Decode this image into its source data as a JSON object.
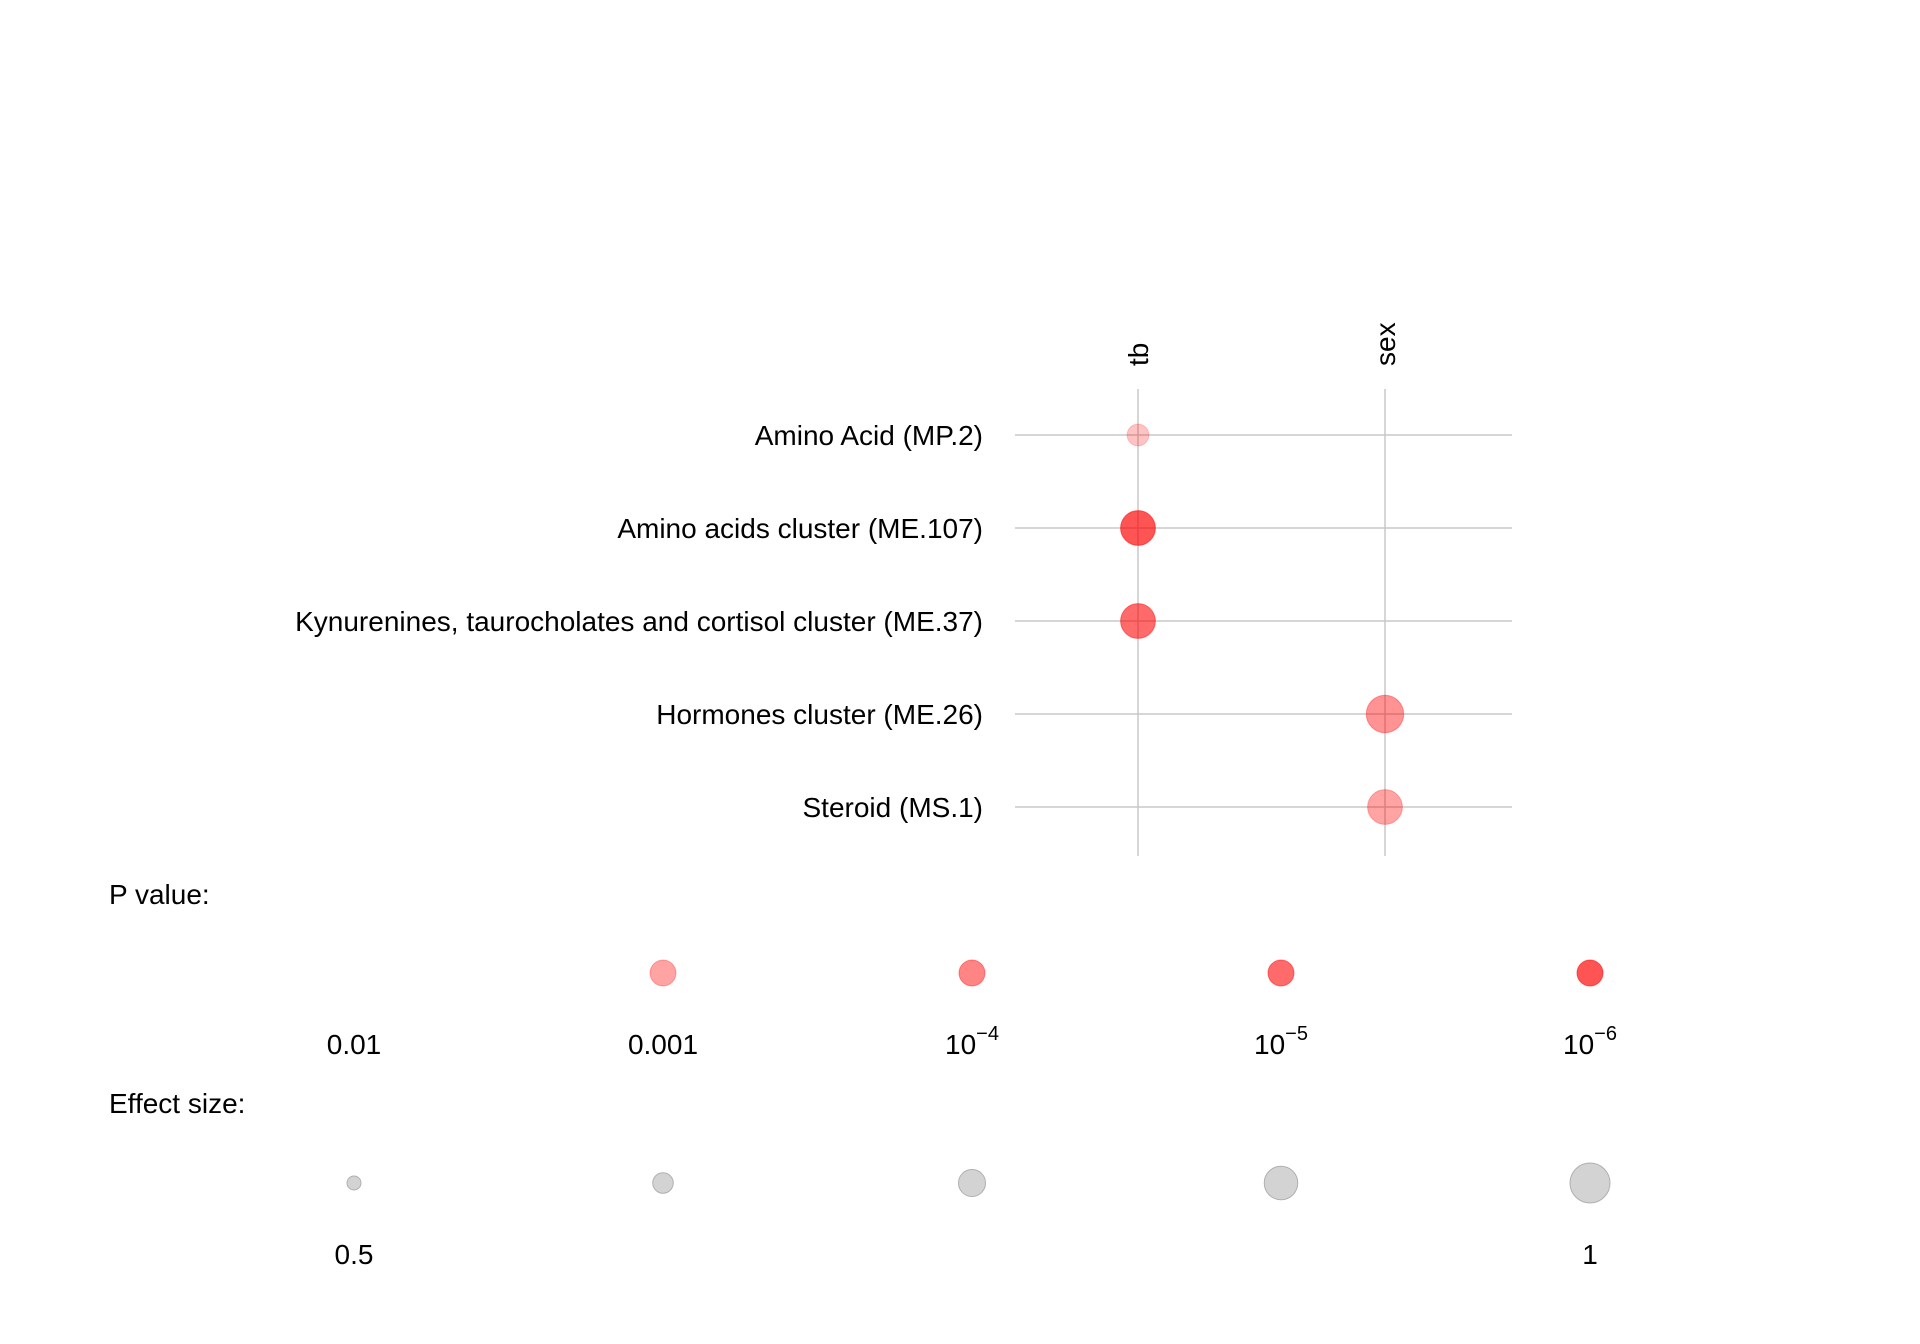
{
  "chart_data": {
    "type": "scatter",
    "columns": [
      "tb",
      "sex"
    ],
    "rows": [
      "Amino Acid (MP.2)",
      "Amino acids cluster (ME.107)",
      "Kynurenines, taurocholates and cortisol cluster (ME.37)",
      "Hormones cluster (ME.26)",
      "Steroid (MS.1)"
    ],
    "points": [
      {
        "row": "Amino Acid (MP.2)",
        "column": "tb",
        "p_value": 0.005,
        "effect_size": 0.65
      },
      {
        "row": "Amino acids cluster (ME.107)",
        "column": "tb",
        "p_value": 1e-06,
        "effect_size": 0.9
      },
      {
        "row": "Kynurenines, taurocholates and cortisol cluster (ME.37)",
        "column": "tb",
        "p_value": 1e-05,
        "effect_size": 0.9
      },
      {
        "row": "Hormones cluster (ME.26)",
        "column": "sex",
        "p_value": 0.0003,
        "effect_size": 0.95
      },
      {
        "row": "Steroid (MS.1)",
        "column": "sex",
        "p_value": 0.001,
        "effect_size": 0.9
      }
    ],
    "grid": true,
    "color": "#ff0000",
    "legend_color": {
      "title": "P value:",
      "entries": [
        {
          "p_value": 0.01,
          "base": "0.01",
          "exp": ""
        },
        {
          "p_value": 0.001,
          "base": "0.001",
          "exp": ""
        },
        {
          "p_value": 0.0001,
          "base": "10",
          "exp": "−4"
        },
        {
          "p_value": 1e-05,
          "base": "10",
          "exp": "−5"
        },
        {
          "p_value": 1e-06,
          "base": "10",
          "exp": "−6"
        }
      ]
    },
    "legend_size": {
      "title": "Effect size:",
      "entries": [
        {
          "effect_size": 0.5,
          "label": "0.5"
        },
        {
          "effect_size": 0.625,
          "label": ""
        },
        {
          "effect_size": 0.75,
          "label": ""
        },
        {
          "effect_size": 0.875,
          "label": ""
        },
        {
          "effect_size": 1,
          "label": "1"
        }
      ]
    },
    "legend_size_color": "#d3d3d3"
  }
}
